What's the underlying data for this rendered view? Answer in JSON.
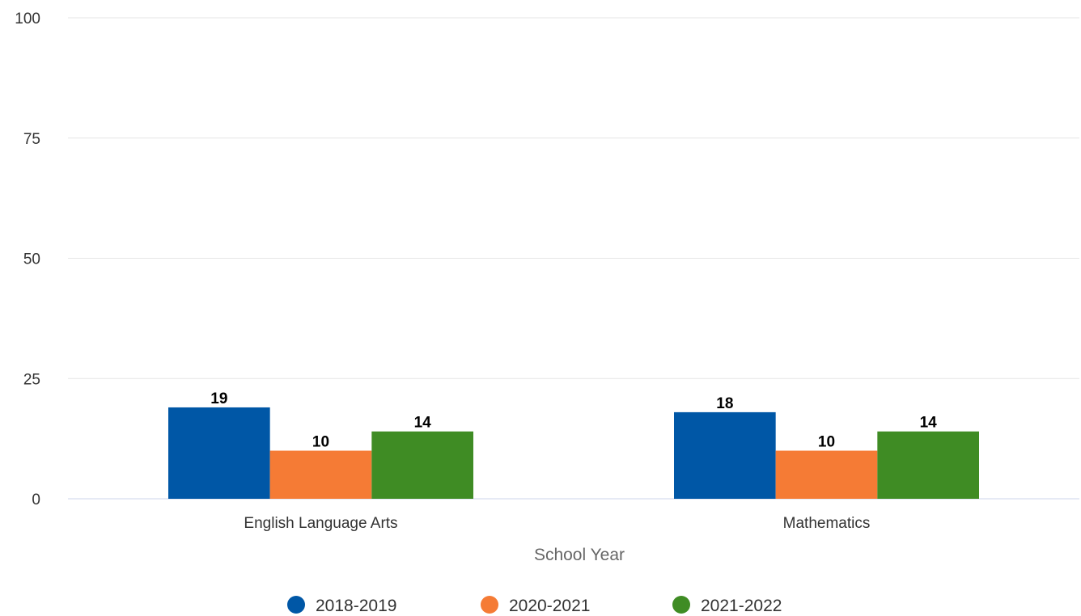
{
  "chart_data": {
    "type": "bar",
    "title": "",
    "xlabel": "School Year",
    "ylabel": "",
    "ylim": [
      0,
      100
    ],
    "yticks": [
      0,
      25,
      50,
      75,
      100
    ],
    "grid": true,
    "legend_position": "bottom",
    "categories": [
      "English Language Arts",
      "Mathematics"
    ],
    "series": [
      {
        "name": "2018-2019",
        "color": "#0057a6",
        "values": [
          19,
          18
        ],
        "labels": [
          "19",
          "18"
        ]
      },
      {
        "name": "2020-2021",
        "color": "#f57b35",
        "values": [
          10,
          10
        ],
        "labels": [
          "10",
          "10"
        ]
      },
      {
        "name": "2021-2022",
        "color": "#3f8c24",
        "values": [
          14,
          14
        ],
        "labels": [
          "14",
          "14"
        ]
      }
    ]
  }
}
